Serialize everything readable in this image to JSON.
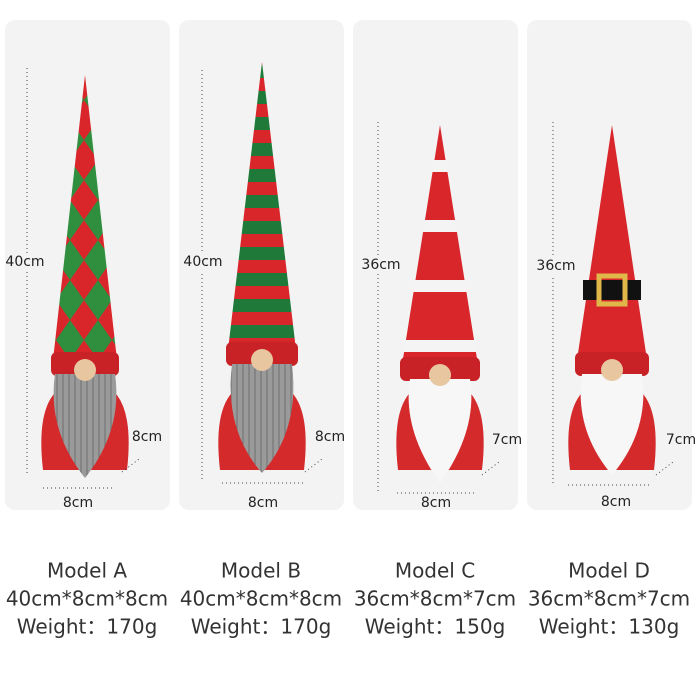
{
  "models": [
    {
      "height_label": "40cm",
      "width_label": "8cm",
      "depth_label": "8cm",
      "name": "Model A",
      "size": "40cm*8cm*8cm",
      "weight": "Weight：170g"
    },
    {
      "height_label": "40cm",
      "width_label": "8cm",
      "depth_label": "8cm",
      "name": "Model B",
      "size": "40cm*8cm*8cm",
      "weight": "Weight：170g"
    },
    {
      "height_label": "36cm",
      "width_label": "8cm",
      "depth_label": "7cm",
      "name": "Model C",
      "size": "36cm*8cm*7cm",
      "weight": "Weight：150g"
    },
    {
      "height_label": "36cm",
      "width_label": "8cm",
      "depth_label": "7cm",
      "name": "Model D",
      "size": "36cm*8cm*7cm",
      "weight": "Weight：130g"
    }
  ]
}
